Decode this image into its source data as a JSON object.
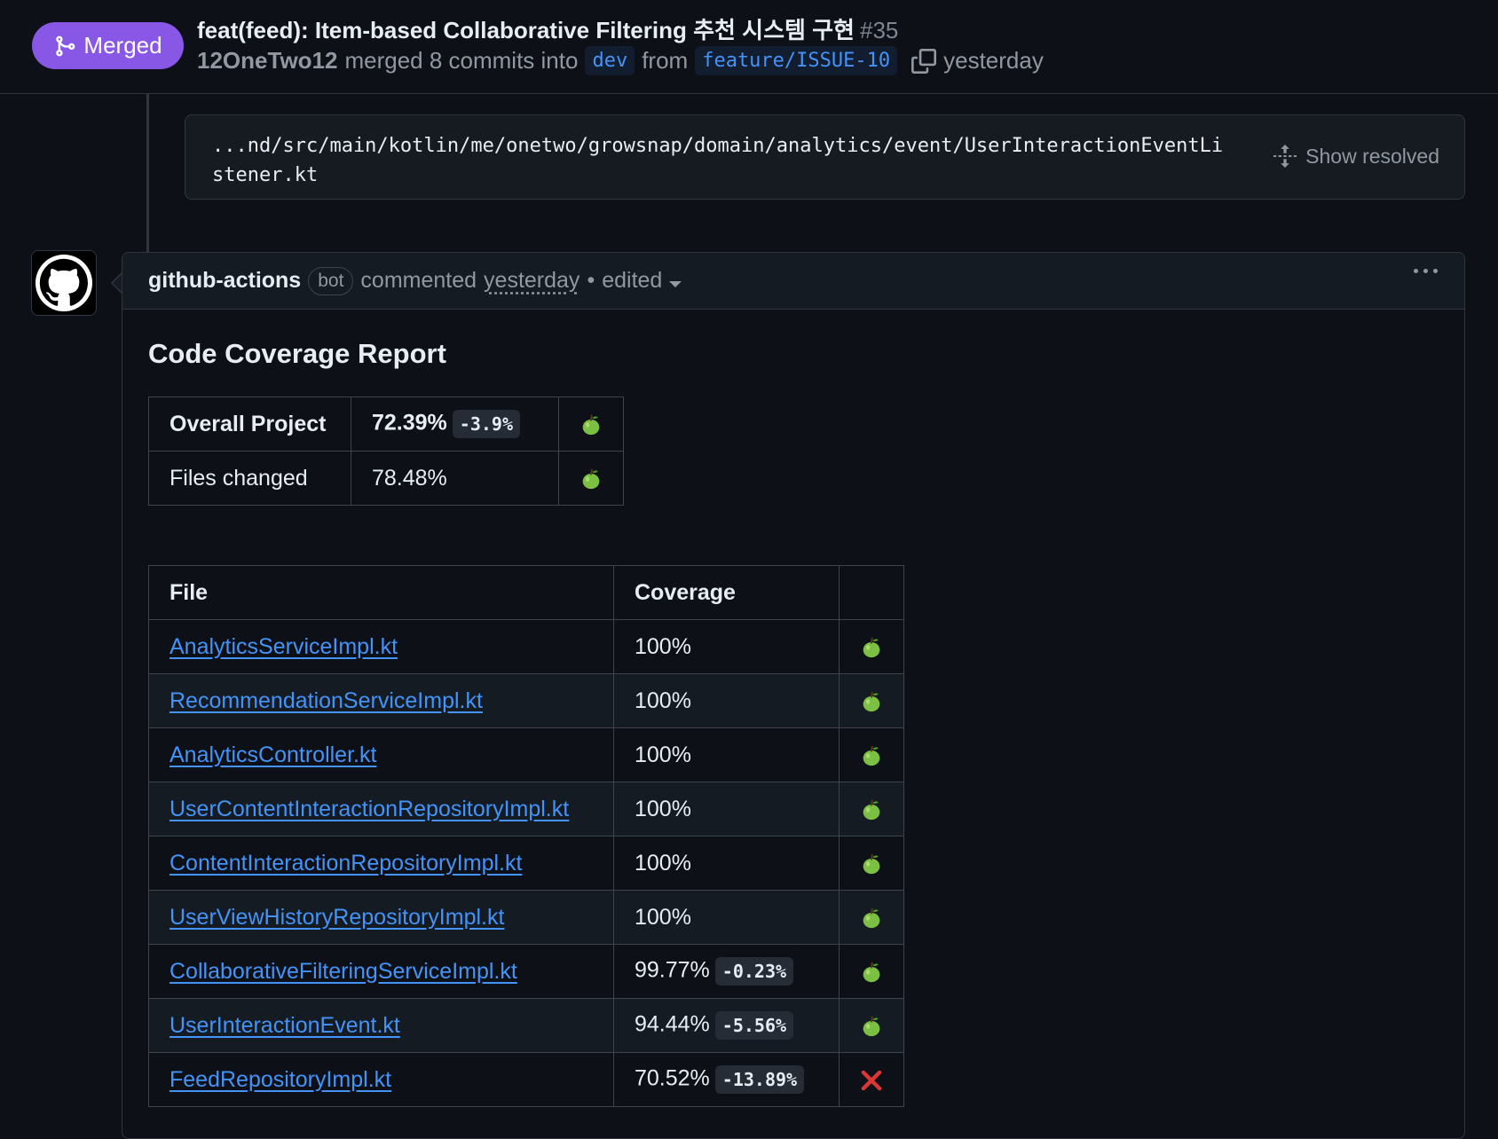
{
  "header": {
    "state_label": "Merged",
    "title": "feat(feed): Item-based Collaborative Filtering 추천 시스템 구현",
    "number": "#35",
    "author": "12OneTwo12",
    "merge_text": "merged 8 commits into",
    "base_branch": "dev",
    "from_text": "from",
    "head_branch": "feature/ISSUE-10",
    "time": "yesterday"
  },
  "resolved": {
    "path": "...nd/src/main/kotlin/me/onetwo/growsnap/domain/analytics/event/UserInteractionEventListener.kt",
    "show_resolved_label": "Show resolved"
  },
  "comment": {
    "author": "github-actions",
    "bot_label": "bot",
    "action": "commented",
    "time": "yesterday",
    "separator": "•",
    "edited": "edited",
    "report_title": "Code Coverage Report"
  },
  "summary": {
    "rows": [
      {
        "label": "Overall Project",
        "value": "72.39%",
        "delta": "-3.9%",
        "status": "pass"
      },
      {
        "label": "Files changed",
        "value": "78.48%",
        "delta": "",
        "status": "pass"
      }
    ]
  },
  "files": {
    "headers": [
      "File",
      "Coverage",
      ""
    ],
    "rows": [
      {
        "name": "AnalyticsServiceImpl.kt",
        "coverage": "100%",
        "delta": "",
        "status": "pass"
      },
      {
        "name": "RecommendationServiceImpl.kt",
        "coverage": "100%",
        "delta": "",
        "status": "pass"
      },
      {
        "name": "AnalyticsController.kt",
        "coverage": "100%",
        "delta": "",
        "status": "pass"
      },
      {
        "name": "UserContentInteractionRepositoryImpl.kt",
        "coverage": "100%",
        "delta": "",
        "status": "pass"
      },
      {
        "name": "ContentInteractionRepositoryImpl.kt",
        "coverage": "100%",
        "delta": "",
        "status": "pass"
      },
      {
        "name": "UserViewHistoryRepositoryImpl.kt",
        "coverage": "100%",
        "delta": "",
        "status": "pass"
      },
      {
        "name": "CollaborativeFilteringServiceImpl.kt",
        "coverage": "99.77%",
        "delta": "-0.23%",
        "status": "pass"
      },
      {
        "name": "UserInteractionEvent.kt",
        "coverage": "94.44%",
        "delta": "-5.56%",
        "status": "pass"
      },
      {
        "name": "FeedRepositoryImpl.kt",
        "coverage": "70.52%",
        "delta": "-13.89%",
        "status": "fail"
      }
    ]
  },
  "colors": {
    "merged": "#8957e5",
    "link": "#4493f8",
    "pass": "#7bc043",
    "fail": "#da3633"
  },
  "icons": {
    "merged": "git-merge-icon",
    "copy": "copy-icon",
    "unfold": "unfold-icon",
    "avatar": "github-mark-icon",
    "pass": "green-apple-icon",
    "fail": "red-cross-icon"
  }
}
